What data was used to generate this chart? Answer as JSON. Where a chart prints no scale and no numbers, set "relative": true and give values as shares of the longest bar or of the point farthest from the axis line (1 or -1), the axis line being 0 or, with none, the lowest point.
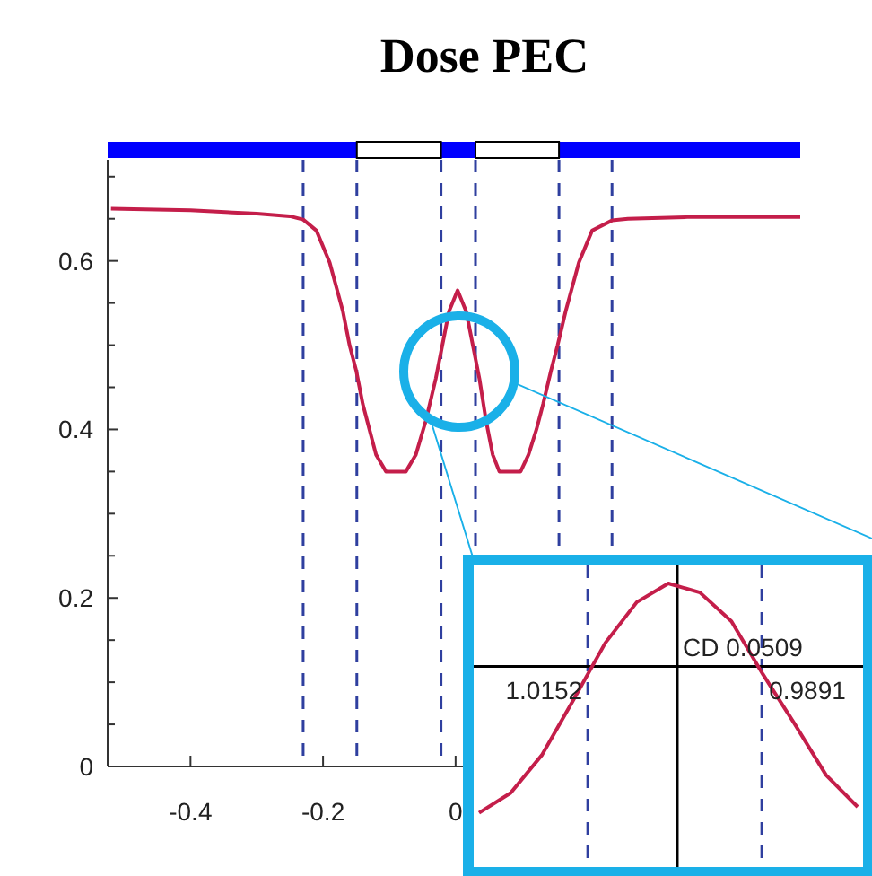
{
  "chart_data": [
    {
      "type": "line",
      "title": "Dose PEC",
      "xlim": [
        -0.525,
        0.52
      ],
      "ylim": [
        0,
        0.72
      ],
      "xticks": [
        -0.4,
        -0.2,
        0
      ],
      "yticks": [
        0,
        {
          "value": 0.05,
          "label": null
        },
        {
          "value": 0.1,
          "label": null
        },
        {
          "value": 0.15,
          "label": null
        },
        0.2,
        {
          "value": 0.25,
          "label": null
        },
        {
          "value": 0.3,
          "label": null
        },
        {
          "value": 0.35,
          "label": null
        },
        0.4,
        {
          "value": 0.45,
          "label": null
        },
        {
          "value": 0.5,
          "label": null
        },
        {
          "value": 0.55,
          "label": null
        },
        0.6,
        {
          "value": 0.65,
          "label": null
        },
        {
          "value": 0.7,
          "label": null
        }
      ],
      "grid": false,
      "marker": "none",
      "line_style": "solid",
      "series": [
        {
          "color": "#c41e4a",
          "x": [
            -0.52,
            -0.4,
            -0.3,
            -0.25,
            -0.23,
            -0.21,
            -0.19,
            -0.17,
            -0.16,
            -0.15,
            -0.14,
            -0.13,
            -0.12,
            -0.105,
            -0.075,
            -0.06,
            -0.045,
            -0.03,
            -0.02,
            -0.01,
            0.003,
            0.016,
            0.026,
            0.036,
            0.046,
            0.056,
            0.066,
            0.098,
            0.11,
            0.122,
            0.132,
            0.144,
            0.154,
            0.166,
            0.186,
            0.206,
            0.236,
            0.26,
            0.35,
            0.52
          ],
          "values": [
            0.662,
            0.66,
            0.656,
            0.653,
            0.649,
            0.636,
            0.598,
            0.54,
            0.5,
            0.47,
            0.43,
            0.4,
            0.37,
            0.35,
            0.35,
            0.37,
            0.41,
            0.46,
            0.5,
            0.54,
            0.565,
            0.54,
            0.5,
            0.46,
            0.41,
            0.37,
            0.35,
            0.35,
            0.37,
            0.4,
            0.43,
            0.47,
            0.5,
            0.54,
            0.598,
            0.636,
            0.648,
            0.65,
            0.652,
            0.652
          ]
        }
      ],
      "ref_lines": [
        {
          "axis": "x",
          "value": -0.23,
          "color": "#2f3f9f",
          "line_style": "dashed"
        },
        {
          "axis": "x",
          "value": -0.149,
          "color": "#2f3f9f",
          "line_style": "dashed"
        },
        {
          "axis": "x",
          "value": -0.022,
          "color": "#2f3f9f",
          "line_style": "dashed"
        },
        {
          "axis": "x",
          "value": 0.03,
          "color": "#2f3f9f",
          "line_style": "dashed"
        },
        {
          "axis": "x",
          "value": 0.156,
          "color": "#2f3f9f",
          "line_style": "dashed"
        },
        {
          "axis": "x",
          "value": 0.236,
          "color": "#2f3f9f",
          "line_style": "dashed"
        }
      ]
    },
    {
      "type": "line",
      "relative": true,
      "grid": false,
      "marker": "none",
      "line_style": "solid",
      "categories": [
        null,
        null,
        null,
        null,
        null,
        null,
        null,
        null,
        null,
        null,
        null,
        null,
        null
      ],
      "series": [
        {
          "color": "#c41e4a",
          "values": [
            0.191,
            0.261,
            0.396,
            0.591,
            0.79,
            0.934,
            1,
            0.968,
            0.866,
            0.679,
            0.505,
            0.324,
            0.212
          ]
        }
      ],
      "ref_lines": [
        {
          "axis": "y",
          "value": 0.707,
          "color": "#000000",
          "line_style": "solid"
        }
      ],
      "annotations": [
        "CD 0.0509",
        "1.0152",
        "0.9891"
      ]
    }
  ]
}
